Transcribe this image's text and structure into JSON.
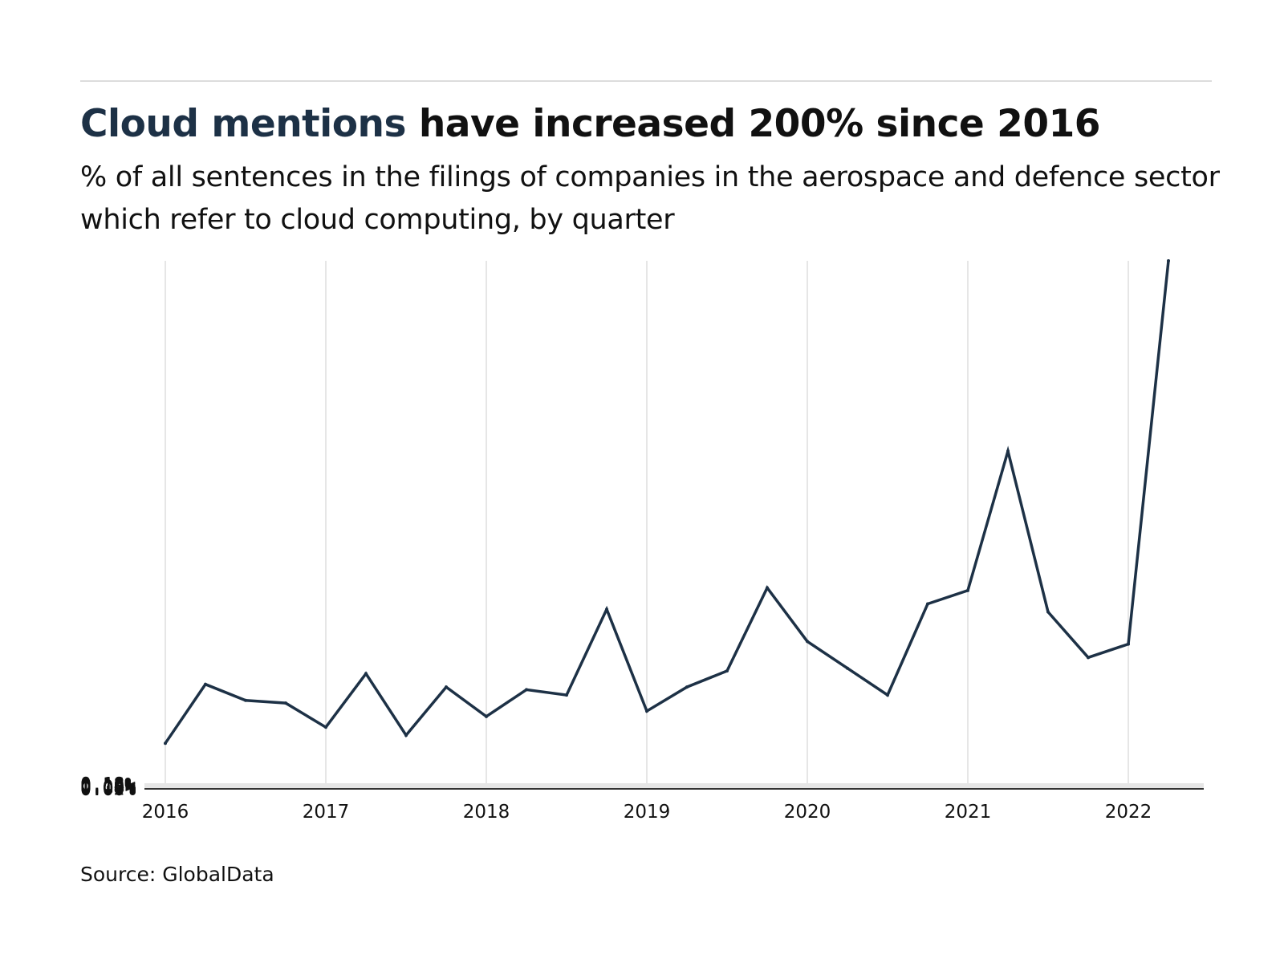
{
  "header": {
    "title_highlight": "Cloud mentions",
    "title_rest": " have increased 200% since 2016",
    "subtitle": "% of all sentences in the filings of companies in the aerospace and defence sector which refer to cloud computing, by quarter"
  },
  "footer": {
    "source": "Source: GlobalData"
  },
  "colors": {
    "line": "#1d3146",
    "highlight": "#1d3146",
    "grid": "#e6e6e6",
    "axis": "#333333"
  },
  "chart_data": {
    "type": "line",
    "title": "Cloud mentions have increased 200% since 2016",
    "subtitle": "% of all sentences in the filings of companies in the aerospace and defence sector which refer to cloud computing, by quarter",
    "xlabel": "",
    "ylabel": "",
    "x_ticks": [
      "2016",
      "2017",
      "2018",
      "2019",
      "2020",
      "2021",
      "2022"
    ],
    "y_ticks": [
      "0.00%",
      "0.02%",
      "0.04%",
      "0.06%",
      "0.08%",
      "0.10%",
      "0.12%",
      "0.14%",
      "0.16%",
      "0.18%"
    ],
    "xlim": [
      2016,
      2022.35
    ],
    "ylim": [
      0,
      0.197
    ],
    "grid": true,
    "legend": "none",
    "series": [
      {
        "x": [
          2016.0,
          2016.25,
          2016.5,
          2016.75,
          2017.0,
          2017.25,
          2017.5,
          2017.75,
          2018.0,
          2018.25,
          2018.5,
          2018.75,
          2019.0,
          2019.25,
          2019.5,
          2019.75,
          2020.0,
          2020.25,
          2020.5,
          2020.75,
          2021.0,
          2021.25,
          2021.5,
          2021.75,
          2022.0,
          2022.25
        ],
        "values": [
          0.017,
          0.039,
          0.033,
          0.032,
          0.023,
          0.043,
          0.02,
          0.038,
          0.027,
          0.037,
          0.035,
          0.067,
          0.029,
          0.038,
          0.044,
          0.075,
          0.055,
          0.045,
          0.035,
          0.069,
          0.074,
          0.126,
          0.066,
          0.049,
          0.054,
          0.197
        ]
      }
    ]
  }
}
